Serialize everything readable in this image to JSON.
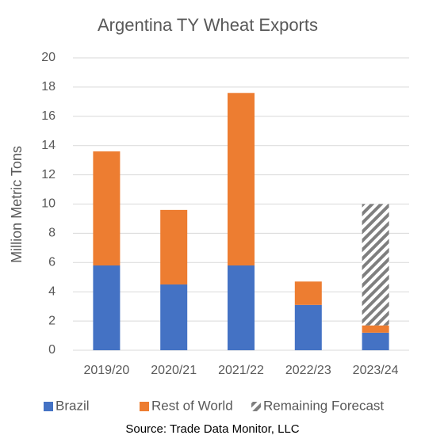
{
  "chart_data": {
    "type": "stacked_bar",
    "title": "Argentina TY Wheat Exports",
    "y_label": "Million Metric Tons",
    "source": "Source: Trade Data Monitor, LLC",
    "categories": [
      "2019/20",
      "2020/21",
      "2021/22",
      "2022/23",
      "2023/24"
    ],
    "series": [
      {
        "name": "Brazil",
        "color": "#4472c4",
        "values": [
          5.8,
          4.5,
          5.8,
          3.1,
          1.2
        ]
      },
      {
        "name": "Rest of World",
        "color": "#ed7d31",
        "values": [
          7.8,
          5.1,
          11.8,
          1.6,
          0.5
        ]
      },
      {
        "name": "Remaining Forecast",
        "color": "#7f7f7f",
        "pattern": "hatch",
        "values": [
          null,
          null,
          null,
          null,
          8.3
        ]
      }
    ],
    "ylim": [
      0,
      20
    ],
    "yticks": [
      0,
      2,
      4,
      6,
      8,
      10,
      12,
      14,
      16,
      18,
      20
    ],
    "grid": true,
    "legend": "bottom"
  }
}
